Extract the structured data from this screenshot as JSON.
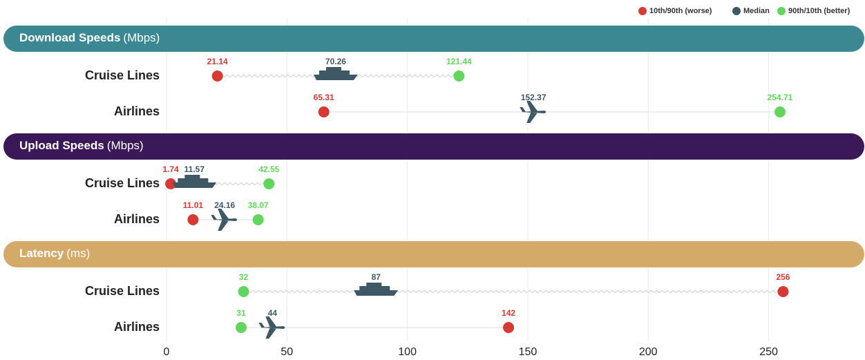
{
  "chart_data": {
    "type": "dumbbell",
    "legend": [
      {
        "name": "10th/90th (worse)",
        "color": "#d63a33"
      },
      {
        "name": "Median",
        "color": "#3f5866"
      },
      {
        "name": "90th/10th (better)",
        "color": "#62d65c"
      }
    ],
    "xlim": [
      0,
      290
    ],
    "xticks": [
      0,
      50,
      100,
      150,
      200,
      250
    ],
    "grid": true,
    "sections": [
      {
        "title": "Download Speeds",
        "unit": "(Mbps)",
        "color": "#3b8893",
        "rows": [
          {
            "label": "Cruise Lines",
            "worse": 21.14,
            "median": 70.26,
            "better": 121.44
          },
          {
            "label": "Airlines",
            "worse": 65.31,
            "median": 152.37,
            "better": 254.71
          }
        ]
      },
      {
        "title": "Upload Speeds",
        "unit": "(Mbps)",
        "color": "#3b1857",
        "rows": [
          {
            "label": "Cruise Lines",
            "worse": 1.74,
            "median": 11.57,
            "better": 42.55
          },
          {
            "label": "Airlines",
            "worse": 11.01,
            "median": 24.16,
            "better": 38.07
          }
        ]
      },
      {
        "title": "Latency",
        "unit": "(ms)",
        "color": "#d3aa68",
        "rows": [
          {
            "label": "Cruise Lines",
            "worse": 256,
            "median": 87,
            "better": 32
          },
          {
            "label": "Airlines",
            "worse": 142,
            "median": 44,
            "better": 31
          }
        ]
      }
    ]
  }
}
